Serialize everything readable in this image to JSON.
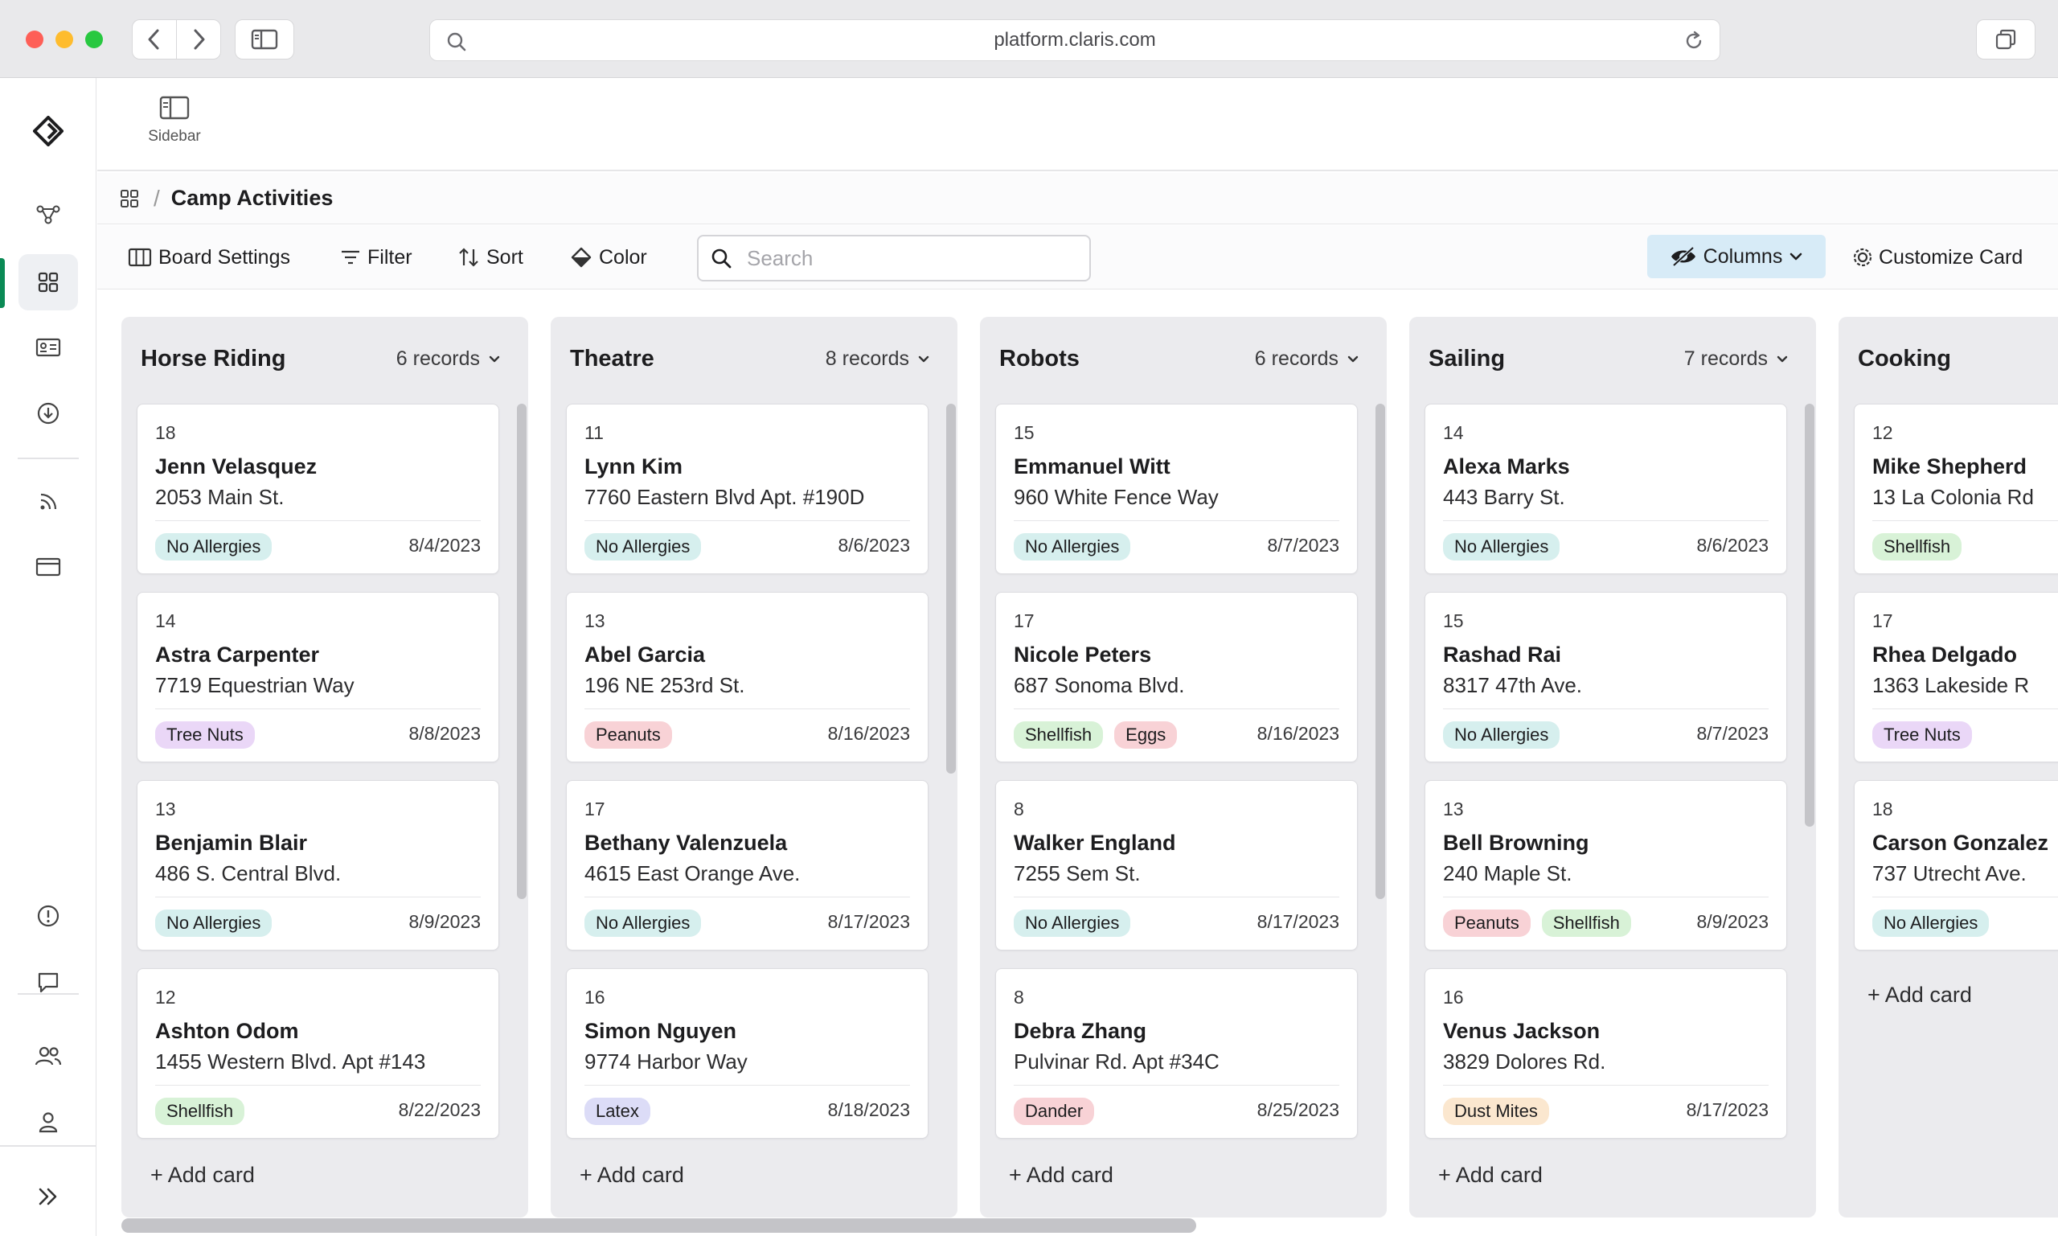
{
  "browser": {
    "url": "platform.claris.com"
  },
  "topbar": {
    "sidebar_label": "Sidebar"
  },
  "breadcrumb": {
    "title": "Camp Activities"
  },
  "toolbar": {
    "board_settings": "Board Settings",
    "filter": "Filter",
    "sort": "Sort",
    "color": "Color",
    "search_placeholder": "Search",
    "columns": "Columns",
    "customize_card": "Customize Card"
  },
  "tag_colors": {
    "No Allergies": "#d6efee",
    "Tree Nuts": "#ead7f7",
    "Shellfish": "#d8f2d7",
    "Peanuts": "#f8d2d6",
    "Eggs": "#f8d2d6",
    "Latex": "#dcdcf7",
    "Dander": "#f8d2d6",
    "Dust Mites": "#fbe7cf"
  },
  "board": {
    "add_card_label": "+ Add card",
    "columns": [
      {
        "title": "Horse Riding",
        "count": "6 records",
        "cards": [
          {
            "num": "18",
            "name": "Jenn Velasquez",
            "address": "2053 Main St.",
            "tags": [
              "No Allergies"
            ],
            "date": "8/4/2023"
          },
          {
            "num": "14",
            "name": "Astra Carpenter",
            "address": "7719 Equestrian Way",
            "tags": [
              "Tree Nuts"
            ],
            "date": "8/8/2023"
          },
          {
            "num": "13",
            "name": "Benjamin Blair",
            "address": "486 S. Central Blvd.",
            "tags": [
              "No Allergies"
            ],
            "date": "8/9/2023"
          },
          {
            "num": "12",
            "name": "Ashton Odom",
            "address": "1455 Western Blvd. Apt #143",
            "tags": [
              "Shellfish"
            ],
            "date": "8/22/2023"
          }
        ]
      },
      {
        "title": "Theatre",
        "count": "8 records",
        "cards": [
          {
            "num": "11",
            "name": "Lynn Kim",
            "address": "7760 Eastern Blvd Apt. #190D",
            "tags": [
              "No Allergies"
            ],
            "date": "8/6/2023"
          },
          {
            "num": "13",
            "name": "Abel Garcia",
            "address": "196 NE 253rd St.",
            "tags": [
              "Peanuts"
            ],
            "date": "8/16/2023"
          },
          {
            "num": "17",
            "name": "Bethany Valenzuela",
            "address": "4615 East Orange Ave.",
            "tags": [
              "No Allergies"
            ],
            "date": "8/17/2023"
          },
          {
            "num": "16",
            "name": "Simon Nguyen",
            "address": "9774 Harbor Way",
            "tags": [
              "Latex"
            ],
            "date": "8/18/2023"
          }
        ]
      },
      {
        "title": "Robots",
        "count": "6 records",
        "cards": [
          {
            "num": "15",
            "name": "Emmanuel Witt",
            "address": "960 White Fence Way",
            "tags": [
              "No Allergies"
            ],
            "date": "8/7/2023"
          },
          {
            "num": "17",
            "name": "Nicole Peters",
            "address": "687 Sonoma Blvd.",
            "tags": [
              "Shellfish",
              "Eggs"
            ],
            "date": "8/16/2023"
          },
          {
            "num": "8",
            "name": "Walker England",
            "address": "7255 Sem St.",
            "tags": [
              "No Allergies"
            ],
            "date": "8/17/2023"
          },
          {
            "num": "8",
            "name": "Debra Zhang",
            "address": "Pulvinar Rd. Apt #34C",
            "tags": [
              "Dander"
            ],
            "date": "8/25/2023"
          }
        ]
      },
      {
        "title": "Sailing",
        "count": "7 records",
        "cards": [
          {
            "num": "14",
            "name": "Alexa Marks",
            "address": "443 Barry St.",
            "tags": [
              "No Allergies"
            ],
            "date": "8/6/2023"
          },
          {
            "num": "15",
            "name": "Rashad Rai",
            "address": "8317 47th Ave.",
            "tags": [
              "No Allergies"
            ],
            "date": "8/7/2023"
          },
          {
            "num": "13",
            "name": "Bell Browning",
            "address": "240 Maple St.",
            "tags": [
              "Peanuts",
              "Shellfish"
            ],
            "date": "8/9/2023"
          },
          {
            "num": "16",
            "name": "Venus Jackson",
            "address": "3829 Dolores Rd.",
            "tags": [
              "Dust Mites"
            ],
            "date": "8/17/2023"
          }
        ]
      },
      {
        "title": "Cooking",
        "count": "",
        "cards": [
          {
            "num": "12",
            "name": "Mike Shepherd",
            "address": "13 La Colonia Rd",
            "tags": [
              "Shellfish"
            ],
            "date": "",
            "more": ""
          },
          {
            "num": "17",
            "name": "Rhea Delgado",
            "address": "1363 Lakeside R",
            "tags": [
              "Tree Nuts"
            ],
            "date": "",
            "more": "..."
          },
          {
            "num": "18",
            "name": "Carson Gonzalez",
            "address": "737 Utrecht Ave.",
            "tags": [
              "No Allergies"
            ],
            "date": "",
            "more": ""
          }
        ]
      }
    ]
  }
}
